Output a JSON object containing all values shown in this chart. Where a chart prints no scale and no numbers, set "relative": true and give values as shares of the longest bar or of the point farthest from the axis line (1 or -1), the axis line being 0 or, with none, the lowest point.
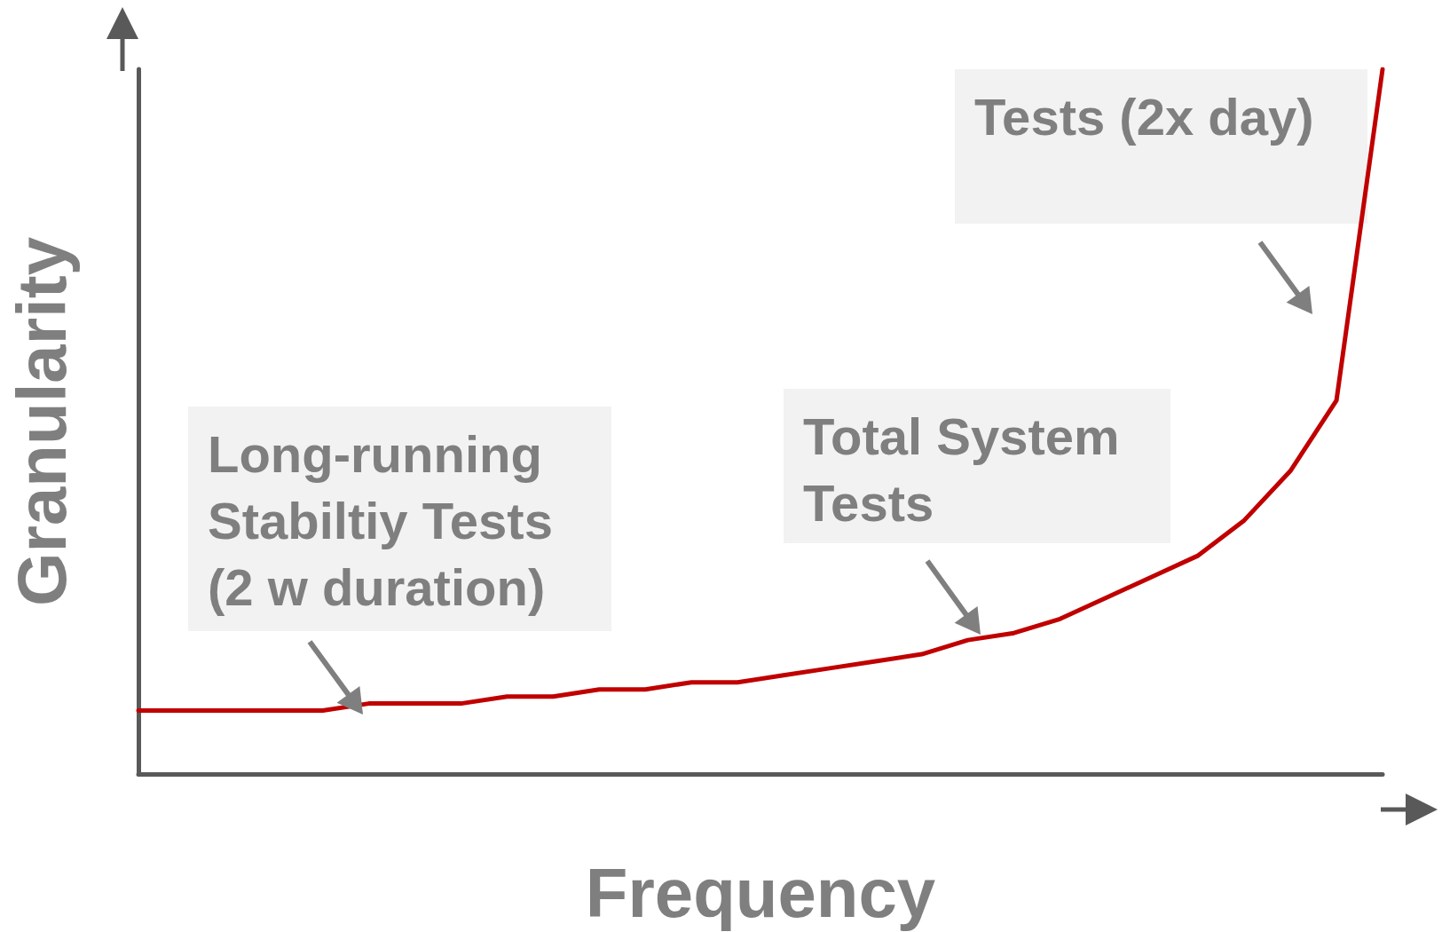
{
  "chart_data": {
    "type": "line",
    "relative": true,
    "xlabel": "Frequency",
    "ylabel": "Granularity",
    "categories": [
      null,
      null,
      null,
      null,
      null,
      null,
      null,
      null,
      null,
      null,
      null,
      null,
      null,
      null,
      null,
      null,
      null,
      null,
      null,
      null,
      null,
      null,
      null,
      null,
      null,
      null,
      null,
      null
    ],
    "series": [
      {
        "color": "#c00000",
        "values": [
          0.09,
          0.09,
          0.09,
          0.09,
          0.09,
          0.1,
          0.1,
          0.1,
          0.11,
          0.11,
          0.12,
          0.12,
          0.13,
          0.13,
          0.14,
          0.15,
          0.16,
          0.17,
          0.19,
          0.2,
          0.22,
          0.25,
          0.28,
          0.31,
          0.36,
          0.43,
          0.53,
          1
        ]
      }
    ],
    "annotations": [
      "Long-running\nStabiltiy Tests\n(2 w duration)",
      "Total System\nTests",
      "Tests (2x day)"
    ],
    "grid": false,
    "marker": "none",
    "line_style": "solid"
  }
}
